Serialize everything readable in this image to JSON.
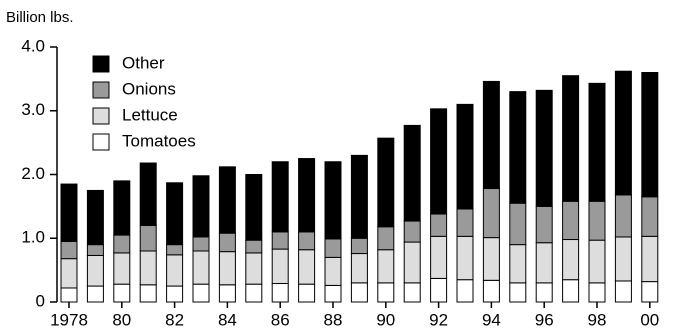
{
  "chart_data": {
    "type": "stacked_bar",
    "y_label": "Billion lbs.",
    "categories": [
      "1978",
      null,
      "80",
      null,
      "82",
      null,
      "84",
      null,
      "86",
      null,
      "88",
      null,
      "90",
      null,
      "92",
      null,
      "94",
      null,
      "96",
      null,
      "98",
      null,
      "00"
    ],
    "series": [
      {
        "name": "Tomatoes",
        "color": "#ffffff",
        "values": [
          0.22,
          0.25,
          0.28,
          0.27,
          0.25,
          0.28,
          0.27,
          0.28,
          0.29,
          0.28,
          0.26,
          0.3,
          0.3,
          0.3,
          0.37,
          0.35,
          0.34,
          0.3,
          0.3,
          0.35,
          0.3,
          0.33,
          0.32
        ]
      },
      {
        "name": "Lettuce",
        "color": "#dddddd",
        "values": [
          0.46,
          0.48,
          0.49,
          0.53,
          0.49,
          0.52,
          0.52,
          0.49,
          0.54,
          0.54,
          0.44,
          0.46,
          0.52,
          0.64,
          0.66,
          0.68,
          0.67,
          0.6,
          0.63,
          0.63,
          0.67,
          0.69,
          0.71
        ]
      },
      {
        "name": "Onions",
        "color": "#9a9a9a",
        "values": [
          0.27,
          0.17,
          0.28,
          0.4,
          0.16,
          0.22,
          0.29,
          0.2,
          0.27,
          0.28,
          0.29,
          0.24,
          0.36,
          0.33,
          0.35,
          0.43,
          0.77,
          0.65,
          0.57,
          0.6,
          0.61,
          0.66,
          0.62
        ]
      },
      {
        "name": "Other",
        "color": "#000000",
        "values": [
          0.9,
          0.85,
          0.85,
          0.98,
          0.97,
          0.96,
          1.04,
          1.03,
          1.1,
          1.15,
          1.21,
          1.3,
          1.39,
          1.5,
          1.65,
          1.64,
          1.68,
          1.75,
          1.82,
          1.97,
          1.85,
          1.94,
          1.95
        ]
      }
    ],
    "ylim": [
      0,
      4
    ],
    "yticks": [
      0,
      {
        "value": 1,
        "label": "1.0"
      },
      {
        "value": 2,
        "label": "2.0"
      },
      {
        "value": 3,
        "label": "3.0"
      },
      {
        "value": 4,
        "label": "4.0"
      }
    ],
    "grid": false,
    "legend": "upper-left"
  }
}
